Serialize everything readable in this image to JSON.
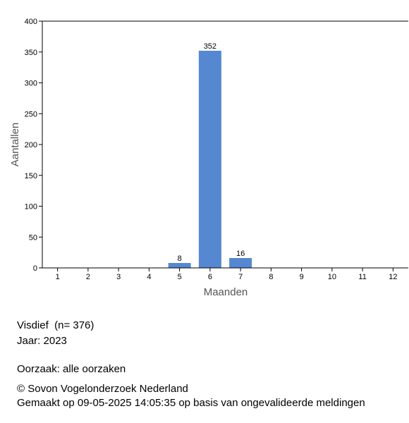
{
  "chart_data": {
    "type": "bar",
    "categories": [
      "1",
      "2",
      "3",
      "4",
      "5",
      "6",
      "7",
      "8",
      "9",
      "10",
      "11",
      "12"
    ],
    "values": [
      0,
      0,
      0,
      0,
      8,
      352,
      16,
      0,
      0,
      0,
      0,
      0
    ],
    "data_labels": [
      "",
      "",
      "",
      "",
      "8",
      "352",
      "16",
      "",
      "",
      "",
      "",
      ""
    ],
    "xlabel": "Maanden",
    "ylabel": "Aantallen",
    "ylim": [
      0,
      400
    ],
    "yticks": [
      0,
      50,
      100,
      150,
      200,
      250,
      300,
      350,
      400
    ],
    "grid": false,
    "bar_color": "#5588d0"
  },
  "info": {
    "species": "Visdief",
    "count": "(n= 376)",
    "year": "Jaar: 2023",
    "cause": "Oorzaak: alle oorzaken",
    "copyright": "© Sovon Vogelonderzoek Nederland",
    "generated": "Gemaakt op 09-05-2025 14:05:35 op basis van ongevalideerde meldingen"
  }
}
